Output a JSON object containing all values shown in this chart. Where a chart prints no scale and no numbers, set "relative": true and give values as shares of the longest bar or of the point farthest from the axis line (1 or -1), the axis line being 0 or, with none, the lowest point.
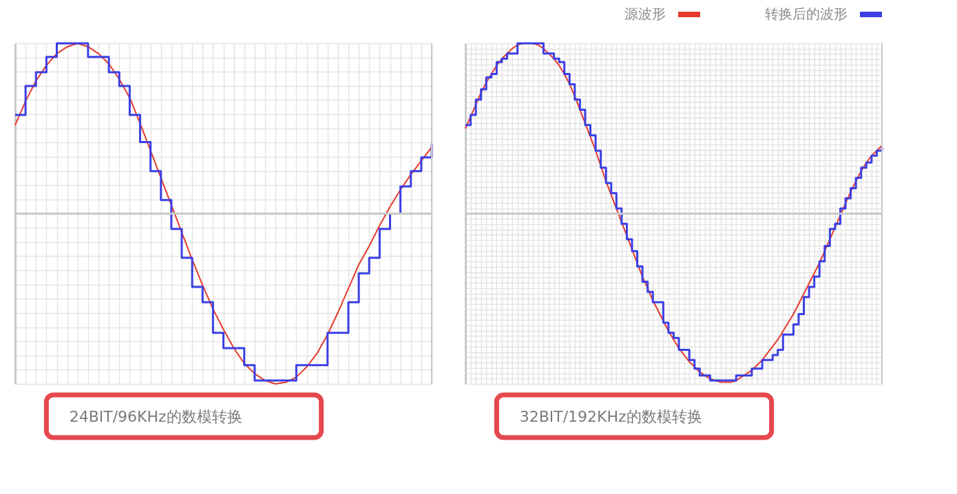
{
  "chart_data": [
    {
      "type": "line",
      "relative": true,
      "grid": true,
      "legend": "top right",
      "xlabel": "24BIT/96KHz的数模转换",
      "categories": [
        null,
        null,
        null,
        null,
        null,
        null,
        null,
        null,
        null,
        null,
        null,
        null,
        null,
        null,
        null,
        null,
        null,
        null,
        null,
        null,
        null,
        null,
        null,
        null,
        null,
        null,
        null,
        null,
        null,
        null,
        null,
        null,
        null,
        null,
        null,
        null,
        null,
        null,
        null,
        null,
        null
      ],
      "series": [
        {
          "name": "源波形",
          "color": "#e4392c",
          "values": [
            0.52,
            0.66,
            0.78,
            0.87,
            0.94,
            0.98,
            1.0,
            0.98,
            0.94,
            0.88,
            0.79,
            0.68,
            0.53,
            0.37,
            0.21,
            0.05,
            -0.11,
            -0.27,
            -0.42,
            -0.56,
            -0.68,
            -0.79,
            -0.88,
            -0.94,
            -0.98,
            -1.0,
            -0.99,
            -0.96,
            -0.9,
            -0.82,
            -0.71,
            -0.58,
            -0.44,
            -0.3,
            -0.19,
            -0.07,
            0.04,
            0.14,
            0.23,
            0.31,
            0.39
          ]
        },
        {
          "name": "转换后的波形",
          "color": "#3b3fe3",
          "type": "step",
          "values": [
            0.58,
            0.75,
            0.83,
            0.92,
            1.0,
            1.0,
            1.0,
            0.92,
            0.92,
            0.83,
            0.75,
            0.58,
            0.42,
            0.25,
            0.08,
            -0.09,
            -0.26,
            -0.43,
            -0.52,
            -0.7,
            -0.79,
            -0.79,
            -0.89,
            -0.98,
            -0.98,
            -0.98,
            -0.98,
            -0.89,
            -0.89,
            -0.89,
            -0.7,
            -0.7,
            -0.52,
            -0.35,
            -0.26,
            -0.09,
            0.0,
            0.16,
            0.25,
            0.33,
            0.41
          ]
        }
      ]
    },
    {
      "type": "line",
      "relative": true,
      "grid": true,
      "xlabel": "32BIT/192KHz的数模转换",
      "categories": [
        null,
        null,
        null,
        null,
        null,
        null,
        null,
        null,
        null,
        null,
        null,
        null,
        null,
        null,
        null,
        null,
        null,
        null,
        null,
        null,
        null,
        null,
        null,
        null,
        null,
        null,
        null,
        null,
        null,
        null,
        null,
        null,
        null,
        null,
        null,
        null,
        null,
        null,
        null,
        null,
        null,
        null,
        null,
        null,
        null,
        null,
        null,
        null,
        null,
        null,
        null,
        null,
        null,
        null,
        null,
        null,
        null,
        null,
        null,
        null,
        null,
        null,
        null,
        null,
        null,
        null,
        null,
        null,
        null,
        null,
        null,
        null,
        null,
        null,
        null,
        null,
        null,
        null,
        null,
        null,
        null
      ],
      "series": [
        {
          "color": "#e4392c",
          "values": [
            0.5,
            0.57,
            0.64,
            0.71,
            0.77,
            0.82,
            0.87,
            0.91,
            0.94,
            0.97,
            0.99,
            1.0,
            1.0,
            1.0,
            0.99,
            0.97,
            0.94,
            0.91,
            0.87,
            0.82,
            0.76,
            0.69,
            0.61,
            0.53,
            0.45,
            0.37,
            0.28,
            0.19,
            0.11,
            0.03,
            -0.05,
            -0.13,
            -0.21,
            -0.29,
            -0.37,
            -0.44,
            -0.51,
            -0.57,
            -0.63,
            -0.69,
            -0.74,
            -0.79,
            -0.83,
            -0.87,
            -0.9,
            -0.93,
            -0.95,
            -0.97,
            -0.98,
            -0.99,
            -0.99,
            -0.99,
            -0.98,
            -0.96,
            -0.94,
            -0.92,
            -0.89,
            -0.86,
            -0.82,
            -0.78,
            -0.74,
            -0.69,
            -0.64,
            -0.59,
            -0.53,
            -0.47,
            -0.41,
            -0.35,
            -0.29,
            -0.22,
            -0.15,
            -0.08,
            -0.01,
            0.06,
            0.13,
            0.19,
            0.25,
            0.3,
            0.34,
            0.37,
            0.4
          ]
        },
        {
          "color": "#3b3fe3",
          "type": "step",
          "values": [
            0.52,
            0.58,
            0.67,
            0.73,
            0.8,
            0.82,
            0.89,
            0.91,
            0.94,
            0.94,
            1.0,
            1.0,
            1.0,
            1.0,
            1.0,
            0.94,
            0.94,
            0.91,
            0.89,
            0.82,
            0.76,
            0.67,
            0.61,
            0.52,
            0.46,
            0.37,
            0.27,
            0.18,
            0.12,
            0.03,
            -0.06,
            -0.15,
            -0.22,
            -0.31,
            -0.4,
            -0.46,
            -0.52,
            -0.52,
            -0.64,
            -0.7,
            -0.73,
            -0.8,
            -0.8,
            -0.86,
            -0.91,
            -0.95,
            -0.95,
            -0.98,
            -0.98,
            -0.98,
            -0.98,
            -0.98,
            -0.95,
            -0.95,
            -0.95,
            -0.91,
            -0.91,
            -0.86,
            -0.86,
            -0.83,
            -0.8,
            -0.71,
            -0.71,
            -0.65,
            -0.59,
            -0.49,
            -0.43,
            -0.37,
            -0.28,
            -0.19,
            -0.09,
            -0.06,
            0.03,
            0.09,
            0.15,
            0.21,
            0.27,
            0.3,
            0.34,
            0.37,
            0.39
          ]
        }
      ]
    }
  ]
}
